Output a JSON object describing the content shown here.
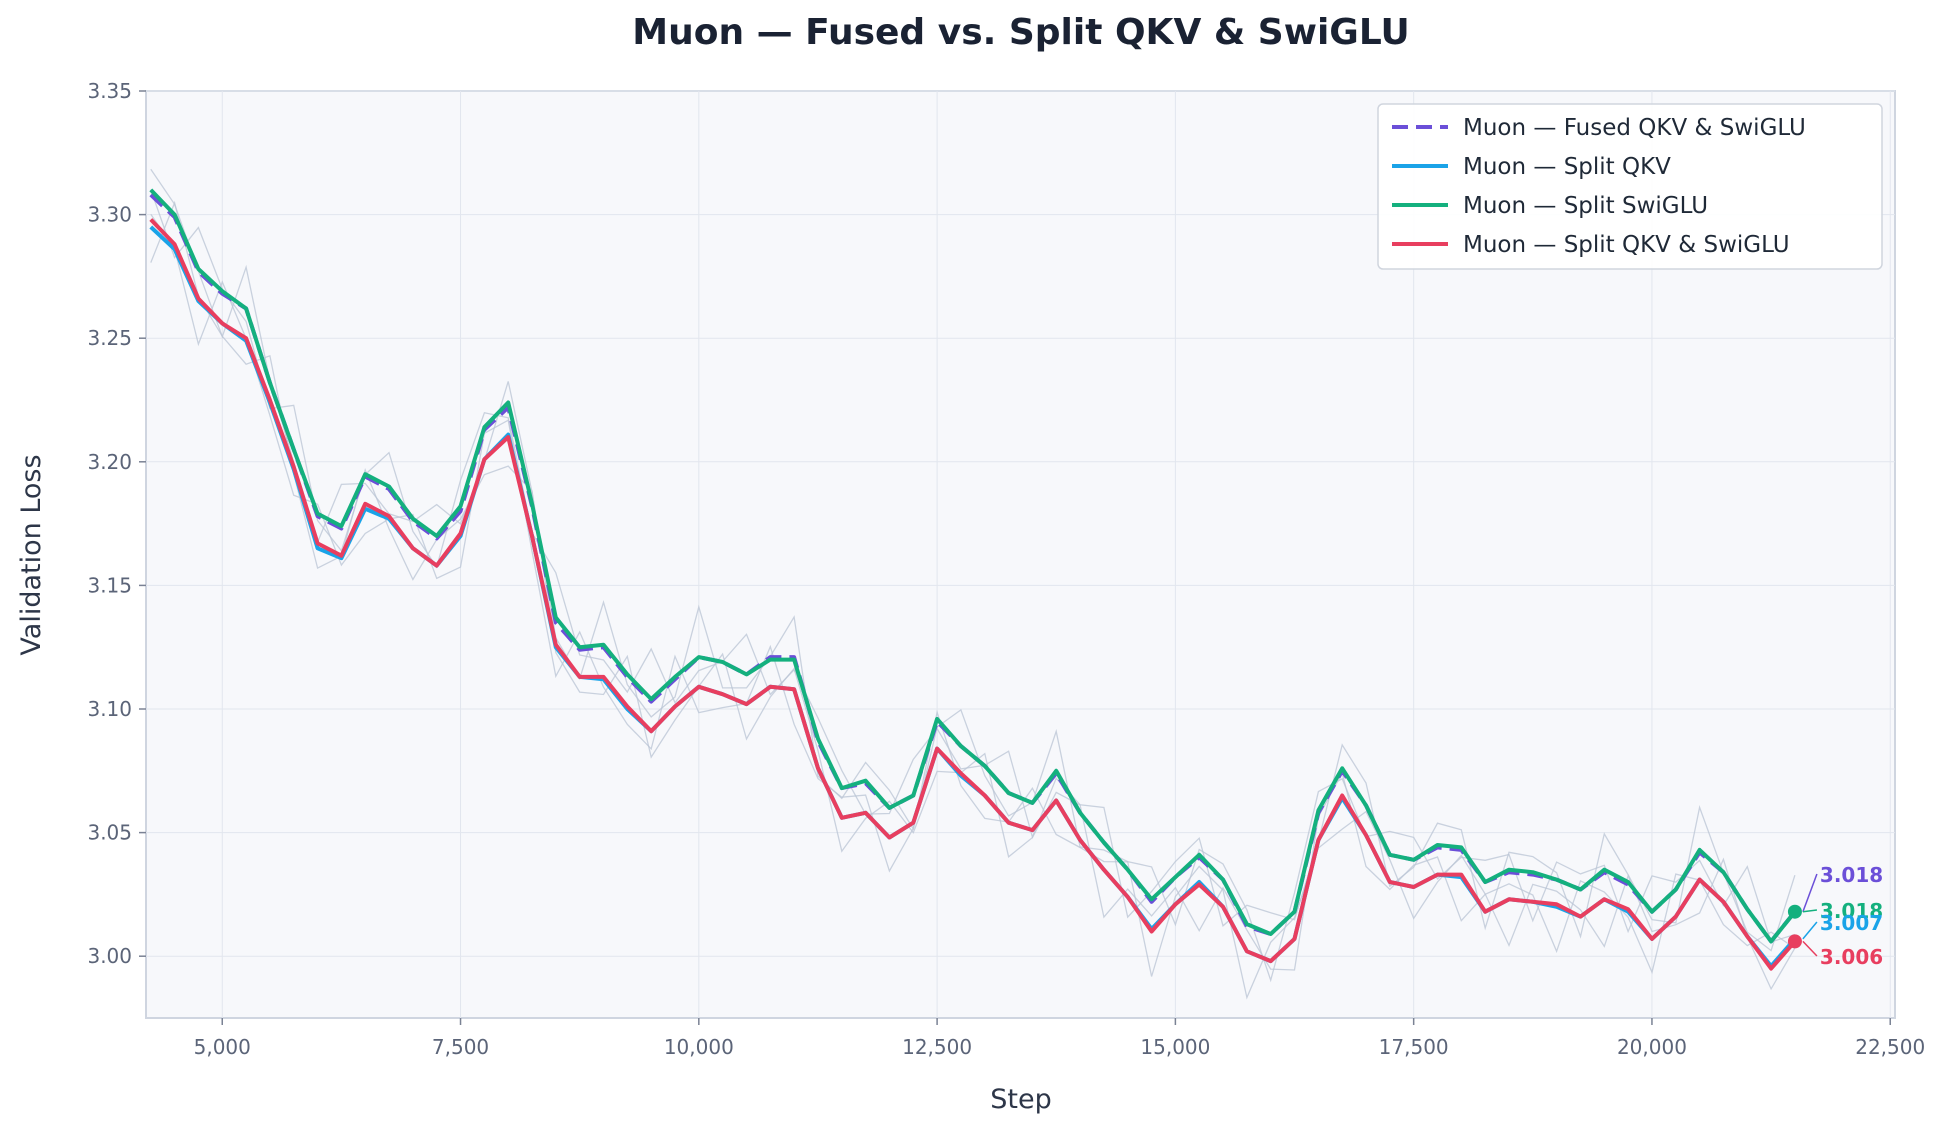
{
  "chart_data": {
    "type": "line",
    "title": "Muon — Fused vs. Split QKV & SwiGLU",
    "xlabel": "Step",
    "ylabel": "Validation Loss",
    "xlim": [
      4200,
      22550
    ],
    "ylim": [
      2.975,
      3.35
    ],
    "xticks": [
      5000,
      7500,
      10000,
      12500,
      15000,
      17500,
      20000,
      22500
    ],
    "xtick_labels": [
      "5,000",
      "7,500",
      "10,000",
      "12,500",
      "15,000",
      "17,500",
      "20,000",
      "22,500"
    ],
    "yticks": [
      3.0,
      3.05,
      3.1,
      3.15,
      3.2,
      3.25,
      3.3,
      3.35
    ],
    "ytick_labels": [
      "3.00",
      "3.05",
      "3.10",
      "3.15",
      "3.20",
      "3.25",
      "3.30",
      "3.35"
    ],
    "grid": true,
    "legend_position": "top-right",
    "x": [
      4250,
      4500,
      4750,
      5000,
      5250,
      5500,
      5750,
      6000,
      6250,
      6500,
      6750,
      7000,
      7250,
      7500,
      7750,
      8000,
      8250,
      8500,
      8750,
      9000,
      9250,
      9500,
      9750,
      10000,
      10250,
      10500,
      10750,
      11000,
      11250,
      11500,
      11750,
      12000,
      12250,
      12500,
      12750,
      13000,
      13250,
      13500,
      13750,
      14000,
      14250,
      14500,
      14750,
      15000,
      15250,
      15500,
      15750,
      16000,
      16250,
      16500,
      16750,
      17000,
      17250,
      17500,
      17750,
      18000,
      18250,
      18500,
      18750,
      19000,
      19250,
      19500,
      19750,
      20000,
      20250,
      20500,
      20750,
      21000,
      21250,
      21500
    ],
    "series": [
      {
        "name": "Muon — Fused QKV & SwiGLU",
        "color": "#6b4fd8",
        "dash": true,
        "values": [
          3.308,
          3.299,
          3.277,
          3.268,
          3.262,
          3.232,
          3.205,
          3.178,
          3.173,
          3.194,
          3.189,
          3.176,
          3.169,
          3.18,
          3.213,
          3.222,
          3.182,
          3.135,
          3.124,
          3.125,
          3.113,
          3.103,
          3.112,
          3.121,
          3.119,
          3.114,
          3.121,
          3.121,
          3.087,
          3.068,
          3.07,
          3.06,
          3.065,
          3.095,
          3.085,
          3.077,
          3.066,
          3.062,
          3.074,
          3.058,
          3.046,
          3.035,
          3.022,
          3.032,
          3.04,
          3.031,
          3.012,
          3.009,
          3.018,
          3.058,
          3.075,
          3.061,
          3.041,
          3.039,
          3.044,
          3.043,
          3.03,
          3.034,
          3.033,
          3.031,
          3.027,
          3.034,
          3.029,
          3.018,
          3.027,
          3.042,
          3.034,
          3.019,
          3.006,
          3.018
        ]
      },
      {
        "name": "Muon — Split QKV",
        "color": "#1aa3e8",
        "dash": false,
        "values": [
          3.295,
          3.286,
          3.265,
          3.256,
          3.249,
          3.224,
          3.197,
          3.165,
          3.161,
          3.181,
          3.177,
          3.165,
          3.158,
          3.17,
          3.201,
          3.211,
          3.17,
          3.125,
          3.113,
          3.112,
          3.1,
          3.091,
          3.101,
          3.109,
          3.106,
          3.102,
          3.109,
          3.108,
          3.076,
          3.056,
          3.058,
          3.048,
          3.054,
          3.084,
          3.073,
          3.065,
          3.054,
          3.051,
          3.063,
          3.047,
          3.035,
          3.024,
          3.011,
          3.021,
          3.03,
          3.02,
          3.002,
          2.998,
          3.007,
          3.047,
          3.064,
          3.049,
          3.03,
          3.028,
          3.033,
          3.032,
          3.018,
          3.023,
          3.022,
          3.02,
          3.016,
          3.023,
          3.018,
          3.007,
          3.016,
          3.031,
          3.022,
          3.008,
          2.996,
          3.007
        ]
      },
      {
        "name": "Muon — Split SwiGLU",
        "color": "#14b07e",
        "dash": false,
        "values": [
          3.31,
          3.3,
          3.278,
          3.269,
          3.262,
          3.232,
          3.205,
          3.179,
          3.174,
          3.195,
          3.19,
          3.177,
          3.17,
          3.182,
          3.214,
          3.224,
          3.183,
          3.137,
          3.125,
          3.126,
          3.114,
          3.104,
          3.113,
          3.121,
          3.119,
          3.114,
          3.12,
          3.12,
          3.088,
          3.068,
          3.071,
          3.06,
          3.065,
          3.096,
          3.085,
          3.077,
          3.066,
          3.062,
          3.075,
          3.058,
          3.046,
          3.035,
          3.023,
          3.032,
          3.041,
          3.031,
          3.013,
          3.009,
          3.018,
          3.059,
          3.076,
          3.061,
          3.041,
          3.039,
          3.045,
          3.044,
          3.03,
          3.035,
          3.034,
          3.031,
          3.027,
          3.035,
          3.03,
          3.018,
          3.027,
          3.043,
          3.034,
          3.019,
          3.006,
          3.018
        ]
      },
      {
        "name": "Muon — Split QKV & SwiGLU",
        "color": "#e83e5f",
        "dash": false,
        "values": [
          3.298,
          3.288,
          3.266,
          3.256,
          3.25,
          3.225,
          3.198,
          3.167,
          3.162,
          3.183,
          3.178,
          3.165,
          3.158,
          3.171,
          3.201,
          3.21,
          3.17,
          3.126,
          3.113,
          3.113,
          3.101,
          3.091,
          3.101,
          3.109,
          3.106,
          3.102,
          3.109,
          3.108,
          3.076,
          3.056,
          3.058,
          3.048,
          3.054,
          3.084,
          3.074,
          3.065,
          3.054,
          3.051,
          3.063,
          3.047,
          3.035,
          3.024,
          3.01,
          3.021,
          3.029,
          3.02,
          3.002,
          2.998,
          3.007,
          3.047,
          3.065,
          3.049,
          3.03,
          3.028,
          3.033,
          3.033,
          3.018,
          3.023,
          3.022,
          3.021,
          3.016,
          3.023,
          3.019,
          3.007,
          3.016,
          3.031,
          3.022,
          3.008,
          2.995,
          3.006
        ]
      }
    ],
    "end_labels": [
      {
        "text": "3.018",
        "color": "#6b4fd8"
      },
      {
        "text": "3.018",
        "color": "#14b07e"
      },
      {
        "text": "3.007",
        "color": "#1aa3e8"
      },
      {
        "text": "3.006",
        "color": "#e83e5f"
      }
    ]
  }
}
